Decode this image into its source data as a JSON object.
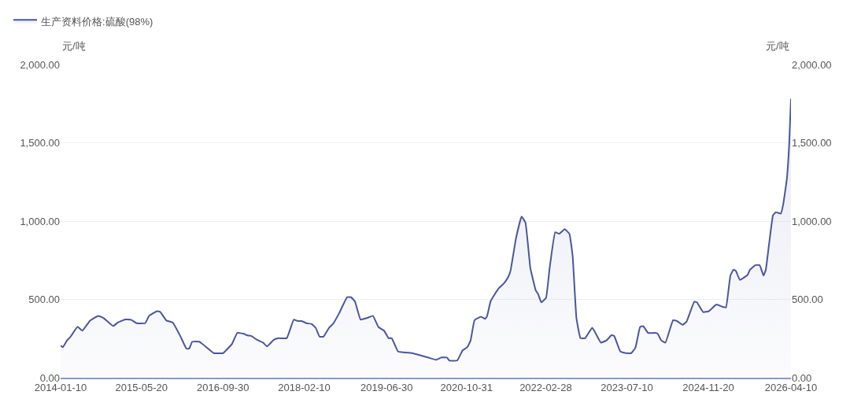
{
  "chart_data": {
    "type": "area",
    "ylabel": "元/吨",
    "y2label": "元/吨",
    "legend": "top left",
    "grid": "y",
    "marker": "none",
    "line_style": "solid",
    "xlim": [
      "2014-01-10",
      "2026-04-10"
    ],
    "xticks": [
      "2014-01-10",
      "2015-05-20",
      "2016-09-30",
      "2018-02-10",
      "2019-06-30",
      "2020-10-31",
      "2022-02-28",
      "2023-07-10",
      "2024-11-20",
      "2026-04-10"
    ],
    "ylim": [
      0,
      2000
    ],
    "yticks": [
      {
        "value": 0,
        "label": "0.00"
      },
      {
        "value": 500,
        "label": "500.00"
      },
      {
        "value": 1000,
        "label": "1,000.00"
      },
      {
        "value": 1500,
        "label": "1,500.00"
      },
      {
        "value": 2000,
        "label": "2,000.00"
      }
    ],
    "y2lim": [
      0,
      2000
    ],
    "y2ticks": [
      {
        "value": 0,
        "label": "0.00"
      },
      {
        "value": 500,
        "label": "500.00"
      },
      {
        "value": 1000,
        "label": "1,000.00"
      },
      {
        "value": 1500,
        "label": "1,500.00"
      },
      {
        "value": 2000,
        "label": "2,000.00"
      }
    ],
    "series": [
      {
        "name": "生产资料价格:硫酸(98%)",
        "color": "#4a569e",
        "x": [
          "2014-01-10",
          "2014-01-24",
          "2014-02-18",
          "2014-03-12",
          "2014-04-24",
          "2014-05-23",
          "2014-07-10",
          "2014-08-28",
          "2014-10-01",
          "2014-11-28",
          "2014-12-26",
          "2015-02-09",
          "2015-03-17",
          "2015-04-20",
          "2015-06-12",
          "2015-07-06",
          "2015-08-23",
          "2015-09-12",
          "2015-10-20",
          "2015-11-28",
          "2016-01-15",
          "2016-02-19",
          "2016-03-08",
          "2016-03-26",
          "2016-05-09",
          "2016-06-26",
          "2016-08-05",
          "2016-10-02",
          "2016-10-25",
          "2016-11-24",
          "2016-12-27",
          "2017-02-04",
          "2017-02-24",
          "2017-03-22",
          "2017-04-25",
          "2017-06-03",
          "2017-06-27",
          "2017-08-09",
          "2017-09-07",
          "2017-10-26",
          "2017-12-08",
          "2018-01-01",
          "2018-01-26",
          "2018-02-24",
          "2018-03-27",
          "2018-04-21",
          "2018-05-15",
          "2018-06-08",
          "2018-07-12",
          "2018-08-05",
          "2018-09-13",
          "2018-10-31",
          "2018-11-24",
          "2018-12-18",
          "2019-01-21",
          "2019-03-01",
          "2019-04-07",
          "2019-05-10",
          "2019-06-14",
          "2019-07-12",
          "2019-07-31",
          "2019-09-08",
          "2019-11-30",
          "2020-01-22",
          "2020-03-09",
          "2020-04-27",
          "2020-05-30",
          "2020-07-03",
          "2020-07-17",
          "2020-09-04",
          "2020-10-08",
          "2020-11-05",
          "2020-11-25",
          "2020-12-19",
          "2021-01-27",
          "2021-02-21",
          "2021-03-05",
          "2021-03-28",
          "2021-05-16",
          "2021-06-19",
          "2021-07-13",
          "2021-07-27",
          "2021-08-30",
          "2021-10-03",
          "2021-10-27",
          "2021-11-26",
          "2021-12-29",
          "2022-01-13",
          "2022-02-01",
          "2022-03-02",
          "2022-03-24",
          "2022-04-27",
          "2022-05-21",
          "2022-06-24",
          "2022-07-23",
          "2022-08-12",
          "2022-09-04",
          "2022-09-29",
          "2022-10-27",
          "2022-12-10",
          "2023-02-01",
          "2023-03-07",
          "2023-04-07",
          "2023-04-23",
          "2023-05-31",
          "2023-07-04",
          "2023-08-06",
          "2023-08-31",
          "2023-09-29",
          "2023-10-18",
          "2023-11-17",
          "2023-12-29",
          "2024-01-14",
          "2024-02-06",
          "2024-03-02",
          "2024-04-18",
          "2024-05-12",
          "2024-06-15",
          "2024-07-09",
          "2024-08-26",
          "2024-09-11",
          "2024-10-19",
          "2024-11-22",
          "2025-01-08",
          "2025-02-17",
          "2025-03-08",
          "2025-04-04",
          "2025-04-23",
          "2025-05-08",
          "2025-06-01",
          "2025-07-19",
          "2025-08-02",
          "2025-09-05",
          "2025-09-30",
          "2025-10-24",
          "2025-11-07",
          "2025-12-21",
          "2026-01-08",
          "2026-02-07",
          "2026-02-22",
          "2026-03-16",
          "2026-03-30",
          "2026-04-10"
        ],
        "values": [
          205,
          195,
          238,
          262,
          325,
          300,
          365,
          395,
          380,
          330,
          352,
          372,
          370,
          348,
          348,
          395,
          425,
          420,
          365,
          352,
          262,
          186,
          186,
          230,
          230,
          190,
          157,
          157,
          181,
          214,
          286,
          281,
          271,
          267,
          243,
          224,
          200,
          243,
          252,
          252,
          371,
          362,
          362,
          348,
          343,
          319,
          262,
          262,
          319,
          343,
          414,
          514,
          514,
          486,
          371,
          381,
          395,
          324,
          300,
          252,
          252,
          167,
          157,
          143,
          129,
          114,
          129,
          129,
          110,
          110,
          176,
          195,
          238,
          367,
          390,
          376,
          390,
          490,
          571,
          605,
          643,
          681,
          890,
          1029,
          990,
          700,
          557,
          533,
          481,
          510,
          700,
          929,
          919,
          948,
          919,
          776,
          381,
          252,
          252,
          319,
          224,
          238,
          271,
          267,
          167,
          157,
          157,
          190,
          324,
          329,
          286,
          286,
          281,
          238,
          224,
          367,
          362,
          338,
          357,
          486,
          481,
          419,
          424,
          467,
          452,
          448,
          652,
          690,
          681,
          624,
          657,
          690,
          719,
          719,
          652,
          690,
          1038,
          1057,
          1048,
          1110,
          1271,
          1490,
          1781
        ]
      }
    ]
  }
}
